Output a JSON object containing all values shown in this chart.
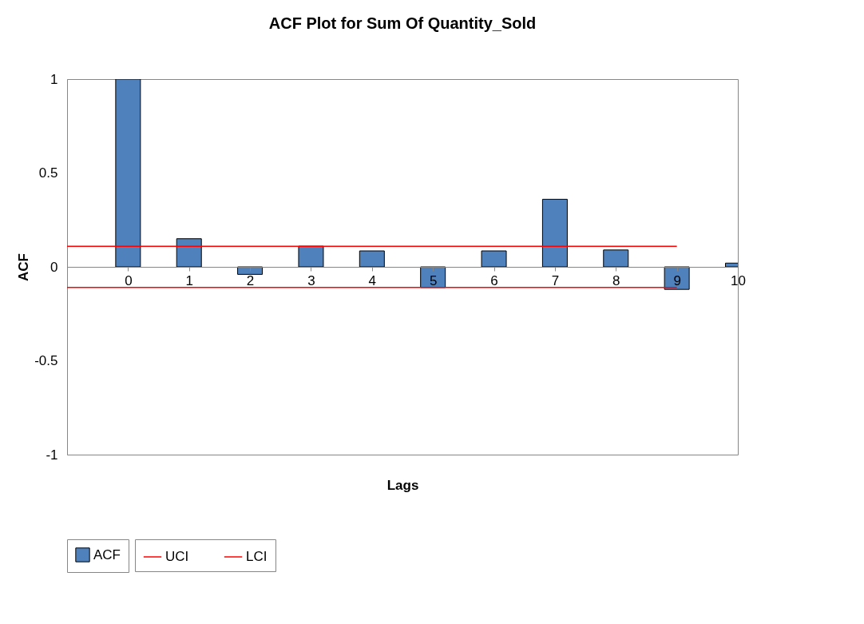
{
  "chart_data": {
    "type": "bar",
    "title": "ACF Plot for Sum Of Quantity_Sold",
    "xlabel": "Lags",
    "ylabel": "ACF",
    "categories": [
      null,
      "0",
      "1",
      "2",
      "3",
      "4",
      "5",
      "6",
      "7",
      "8",
      "9",
      "10"
    ],
    "series": [
      {
        "name": "ACF",
        "color": "#4f81bd",
        "values": [
          null,
          1.0,
          0.15,
          -0.04,
          0.11,
          0.085,
          -0.11,
          0.085,
          0.36,
          0.09,
          -0.12,
          0.02
        ]
      },
      {
        "name": "UCI",
        "type": "line",
        "color": "#ff0000",
        "values": [
          0.11,
          0.11,
          0.11,
          0.11,
          0.11,
          0.11,
          0.11,
          0.11,
          0.11,
          0.11,
          0.11,
          null
        ]
      },
      {
        "name": "LCI",
        "type": "line",
        "color": "#ff0000",
        "values": [
          -0.11,
          -0.11,
          -0.11,
          -0.11,
          -0.11,
          -0.11,
          -0.11,
          -0.11,
          -0.11,
          -0.11,
          -0.11,
          null
        ]
      }
    ],
    "ylim": [
      -1,
      1
    ],
    "yticks": [
      -1,
      -0.5,
      0,
      0.5,
      1
    ],
    "grid": false,
    "legend": "bottom"
  }
}
